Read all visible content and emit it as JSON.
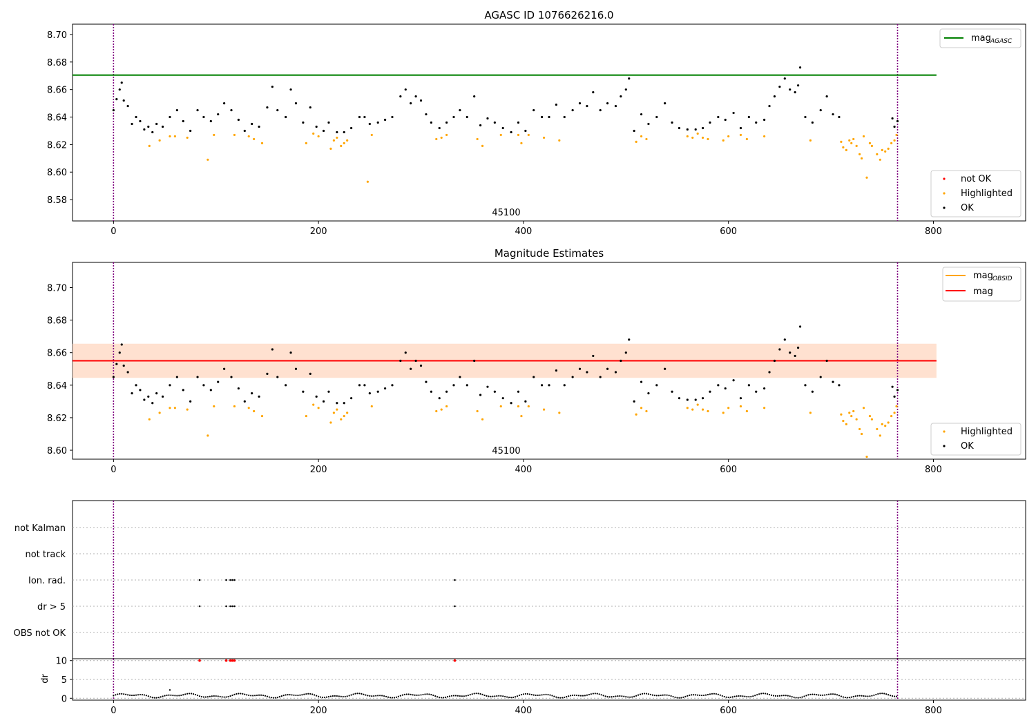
{
  "figure": {
    "window_title": ""
  },
  "chart_data": [
    {
      "type": "scatter",
      "title": "AGASC ID 1076626216.0",
      "xlabel": "",
      "ylabel": "",
      "xlim": [
        -40,
        890
      ],
      "ylim": [
        8.5645,
        8.7075
      ],
      "xticks": [
        0,
        200,
        400,
        600,
        800
      ],
      "yticks": [
        8.58,
        8.6,
        8.62,
        8.64,
        8.66,
        8.68,
        8.7
      ],
      "grid": false,
      "obsid_label": "45100",
      "obsid_label_x": 385,
      "vlines": [
        0,
        765
      ],
      "hline": {
        "name": "mag_AGASC",
        "value": 8.6705,
        "color": "#008000"
      },
      "legend_top": {
        "placement": "top-right",
        "entries": [
          {
            "label": "mag",
            "sub": "AGASC",
            "color": "#008000",
            "kind": "line"
          }
        ]
      },
      "legend_bottom": {
        "placement": "bottom-right",
        "entries": [
          {
            "label": "not OK",
            "color": "#ff0000",
            "kind": "dot"
          },
          {
            "label": "Highlighted",
            "color": "#ffa500",
            "kind": "dot"
          },
          {
            "label": "OK",
            "color": "#000000",
            "kind": "dot"
          }
        ]
      },
      "series": [
        {
          "name": "not OK",
          "color": "#ff0000",
          "points": []
        },
        {
          "name": "Highlighted",
          "color": "#ffa500",
          "points": [
            [
              35,
              8.619
            ],
            [
              45,
              8.623
            ],
            [
              55,
              8.626
            ],
            [
              60,
              8.626
            ],
            [
              72,
              8.625
            ],
            [
              92,
              8.609
            ],
            [
              98,
              8.627
            ],
            [
              118,
              8.627
            ],
            [
              132,
              8.626
            ],
            [
              137,
              8.624
            ],
            [
              145,
              8.621
            ],
            [
              188,
              8.621
            ],
            [
              195,
              8.628
            ],
            [
              200,
              8.626
            ],
            [
              212,
              8.617
            ],
            [
              215,
              8.623
            ],
            [
              218,
              8.625
            ],
            [
              222,
              8.619
            ],
            [
              225,
              8.621
            ],
            [
              228,
              8.623
            ],
            [
              248,
              8.593
            ],
            [
              252,
              8.627
            ],
            [
              315,
              8.624
            ],
            [
              320,
              8.625
            ],
            [
              325,
              8.627
            ],
            [
              355,
              8.624
            ],
            [
              360,
              8.619
            ],
            [
              378,
              8.627
            ],
            [
              395,
              8.627
            ],
            [
              398,
              8.621
            ],
            [
              405,
              8.627
            ],
            [
              420,
              8.625
            ],
            [
              435,
              8.623
            ],
            [
              510,
              8.622
            ],
            [
              515,
              8.626
            ],
            [
              520,
              8.624
            ],
            [
              560,
              8.626
            ],
            [
              565,
              8.625
            ],
            [
              570,
              8.628
            ],
            [
              575,
              8.625
            ],
            [
              580,
              8.624
            ],
            [
              595,
              8.623
            ],
            [
              600,
              8.626
            ],
            [
              612,
              8.627
            ],
            [
              618,
              8.624
            ],
            [
              635,
              8.626
            ],
            [
              680,
              8.623
            ],
            [
              710,
              8.622
            ],
            [
              712,
              8.618
            ],
            [
              715,
              8.616
            ],
            [
              718,
              8.623
            ],
            [
              720,
              8.621
            ],
            [
              722,
              8.624
            ],
            [
              725,
              8.619
            ],
            [
              728,
              8.613
            ],
            [
              730,
              8.61
            ],
            [
              732,
              8.626
            ],
            [
              735,
              8.596
            ],
            [
              738,
              8.621
            ],
            [
              740,
              8.619
            ],
            [
              745,
              8.613
            ],
            [
              748,
              8.609
            ],
            [
              750,
              8.616
            ],
            [
              753,
              8.615
            ],
            [
              756,
              8.617
            ],
            [
              759,
              8.621
            ],
            [
              762,
              8.623
            ],
            [
              764,
              8.627
            ]
          ]
        },
        {
          "name": "OK",
          "color": "#000000",
          "points": [
            [
              0,
              8.645
            ],
            [
              3,
              8.653
            ],
            [
              6,
              8.66
            ],
            [
              8,
              8.665
            ],
            [
              10,
              8.652
            ],
            [
              14,
              8.648
            ],
            [
              18,
              8.635
            ],
            [
              22,
              8.64
            ],
            [
              26,
              8.637
            ],
            [
              30,
              8.631
            ],
            [
              34,
              8.633
            ],
            [
              38,
              8.629
            ],
            [
              42,
              8.635
            ],
            [
              48,
              8.633
            ],
            [
              55,
              8.64
            ],
            [
              62,
              8.645
            ],
            [
              68,
              8.637
            ],
            [
              75,
              8.63
            ],
            [
              82,
              8.645
            ],
            [
              88,
              8.64
            ],
            [
              95,
              8.637
            ],
            [
              102,
              8.642
            ],
            [
              108,
              8.65
            ],
            [
              115,
              8.645
            ],
            [
              122,
              8.638
            ],
            [
              128,
              8.63
            ],
            [
              135,
              8.635
            ],
            [
              142,
              8.633
            ],
            [
              150,
              8.647
            ],
            [
              155,
              8.662
            ],
            [
              160,
              8.645
            ],
            [
              168,
              8.64
            ],
            [
              173,
              8.66
            ],
            [
              178,
              8.65
            ],
            [
              185,
              8.636
            ],
            [
              192,
              8.647
            ],
            [
              198,
              8.633
            ],
            [
              205,
              8.63
            ],
            [
              210,
              8.636
            ],
            [
              218,
              8.629
            ],
            [
              225,
              8.629
            ],
            [
              232,
              8.632
            ],
            [
              240,
              8.64
            ],
            [
              245,
              8.64
            ],
            [
              250,
              8.635
            ],
            [
              258,
              8.636
            ],
            [
              265,
              8.638
            ],
            [
              272,
              8.64
            ],
            [
              280,
              8.655
            ],
            [
              285,
              8.66
            ],
            [
              290,
              8.65
            ],
            [
              295,
              8.655
            ],
            [
              300,
              8.652
            ],
            [
              305,
              8.642
            ],
            [
              310,
              8.636
            ],
            [
              318,
              8.632
            ],
            [
              325,
              8.636
            ],
            [
              332,
              8.64
            ],
            [
              338,
              8.645
            ],
            [
              345,
              8.64
            ],
            [
              352,
              8.655
            ],
            [
              358,
              8.634
            ],
            [
              365,
              8.639
            ],
            [
              372,
              8.636
            ],
            [
              380,
              8.632
            ],
            [
              388,
              8.629
            ],
            [
              395,
              8.636
            ],
            [
              402,
              8.63
            ],
            [
              410,
              8.645
            ],
            [
              418,
              8.64
            ],
            [
              425,
              8.64
            ],
            [
              432,
              8.649
            ],
            [
              440,
              8.64
            ],
            [
              448,
              8.645
            ],
            [
              455,
              8.65
            ],
            [
              462,
              8.648
            ],
            [
              468,
              8.658
            ],
            [
              475,
              8.645
            ],
            [
              482,
              8.65
            ],
            [
              490,
              8.648
            ],
            [
              495,
              8.655
            ],
            [
              500,
              8.66
            ],
            [
              503,
              8.668
            ],
            [
              508,
              8.63
            ],
            [
              515,
              8.642
            ],
            [
              522,
              8.635
            ],
            [
              530,
              8.64
            ],
            [
              538,
              8.65
            ],
            [
              545,
              8.636
            ],
            [
              552,
              8.632
            ],
            [
              560,
              8.631
            ],
            [
              568,
              8.631
            ],
            [
              575,
              8.632
            ],
            [
              582,
              8.636
            ],
            [
              590,
              8.64
            ],
            [
              597,
              8.638
            ],
            [
              605,
              8.643
            ],
            [
              612,
              8.632
            ],
            [
              620,
              8.64
            ],
            [
              627,
              8.636
            ],
            [
              635,
              8.638
            ],
            [
              640,
              8.648
            ],
            [
              645,
              8.655
            ],
            [
              650,
              8.662
            ],
            [
              655,
              8.668
            ],
            [
              660,
              8.66
            ],
            [
              665,
              8.658
            ],
            [
              668,
              8.663
            ],
            [
              670,
              8.676
            ],
            [
              675,
              8.64
            ],
            [
              682,
              8.636
            ],
            [
              690,
              8.645
            ],
            [
              696,
              8.655
            ],
            [
              702,
              8.642
            ],
            [
              708,
              8.64
            ],
            [
              765,
              8.637
            ],
            [
              762,
              8.633
            ],
            [
              760,
              8.639
            ]
          ]
        }
      ]
    },
    {
      "type": "scatter",
      "title": "Magnitude Estimates",
      "xlabel": "",
      "ylabel": "",
      "xlim": [
        -40,
        890
      ],
      "ylim": [
        8.5945,
        8.7155
      ],
      "xticks": [
        0,
        200,
        400,
        600,
        800
      ],
      "yticks": [
        8.6,
        8.62,
        8.64,
        8.66,
        8.68,
        8.7
      ],
      "grid": false,
      "obsid_label": "45100",
      "obsid_label_x": 385,
      "vlines": [
        0,
        765
      ],
      "band": {
        "low": 8.6445,
        "high": 8.6655,
        "color": "#ffdcc8"
      },
      "hline": {
        "name": "mag",
        "value": 8.655,
        "color": "#ff0000"
      },
      "legend_top": {
        "placement": "top-right",
        "entries": [
          {
            "label": "mag",
            "sub": "OBSID",
            "color": "#ffa500",
            "kind": "line"
          },
          {
            "label": "mag",
            "sub": "",
            "color": "#ff0000",
            "kind": "line"
          }
        ]
      },
      "legend_bottom": {
        "placement": "bottom-right",
        "entries": [
          {
            "label": "Highlighted",
            "color": "#ffa500",
            "kind": "dot"
          },
          {
            "label": "OK",
            "color": "#000000",
            "kind": "dot"
          }
        ]
      },
      "series_ref": [
        1,
        2
      ]
    },
    {
      "type": "scatter",
      "title": "",
      "xlim": [
        -40,
        890
      ],
      "xticks": [
        0,
        200,
        400,
        600,
        800
      ],
      "flag_labels": [
        "OBS not OK",
        "dr > 5",
        "Ion. rad.",
        "not track",
        "not Kalman"
      ],
      "flags": {
        "dr > 5": [
          84,
          110,
          114,
          116,
          118,
          333
        ],
        "Ion. rad.": [
          84,
          110,
          114,
          116,
          118,
          333
        ]
      },
      "vlines": [
        0,
        765
      ]
    },
    {
      "type": "scatter",
      "title": "",
      "xlabel": "",
      "ylabel": "dr",
      "xlim": [
        -40,
        890
      ],
      "ylim": [
        -0.5,
        10.5
      ],
      "xticks": [
        0,
        200,
        400,
        600,
        800
      ],
      "yticks": [
        0,
        5,
        10
      ],
      "clipped": {
        "value": 10,
        "color": "#ff0000",
        "x": [
          84,
          110,
          114,
          116,
          118,
          333
        ]
      },
      "outlier": [
        [
          55,
          2.2
        ]
      ],
      "vlines": [
        0,
        765
      ]
    }
  ]
}
